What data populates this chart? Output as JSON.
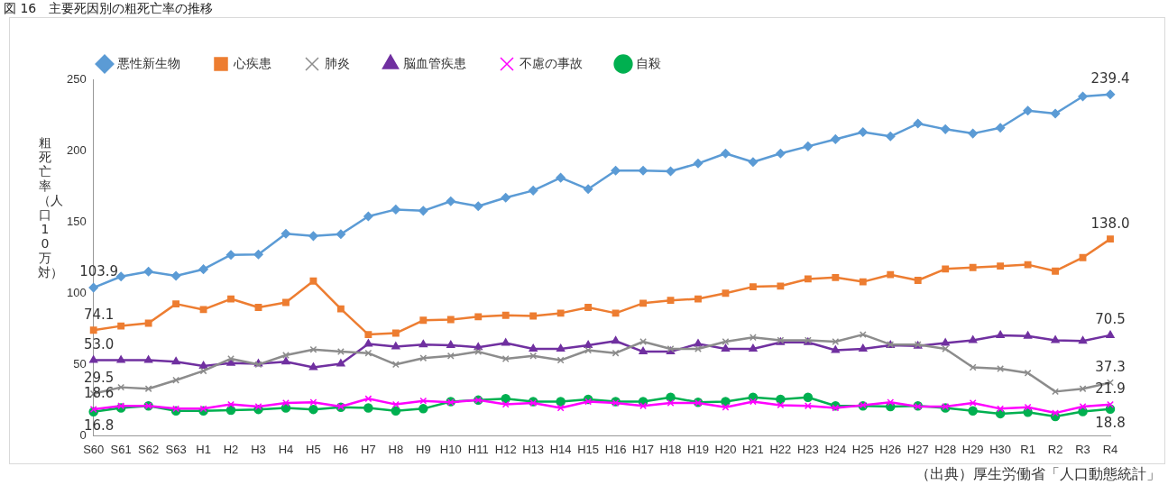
{
  "chart_data": {
    "type": "line",
    "title": "図 16　主要死因別の粗死亡率の推移",
    "ylabel": "粗死亡率（人口10万対）",
    "annotations": [
      "（出典）厚生労働省「人口動態統計」"
    ],
    "categories": [
      "S60",
      "S61",
      "S62",
      "S63",
      "H1",
      "H2",
      "H3",
      "H4",
      "H5",
      "H6",
      "H7",
      "H8",
      "H9",
      "H10",
      "H11",
      "H12",
      "H13",
      "H14",
      "H15",
      "H16",
      "H17",
      "H18",
      "H19",
      "H20",
      "H21",
      "H22",
      "H23",
      "H24",
      "H25",
      "H26",
      "H27",
      "H28",
      "H29",
      "H30",
      "R1",
      "R2",
      "R3",
      "R4"
    ],
    "ylim": [
      0,
      250
    ],
    "yticks": [
      0,
      50,
      100,
      150,
      200,
      250
    ],
    "grid": false,
    "legend": "top left",
    "line_style": "solid",
    "series": [
      {
        "name": "悪性新生物",
        "color": "#5b9bd5",
        "marker": "diamond",
        "values": [
          103.9,
          111.7,
          115.2,
          112.2,
          116.8,
          126.9,
          127.2,
          141.7,
          140.1,
          141.4,
          153.9,
          158.7,
          157.8,
          164.5,
          161,
          167,
          172,
          181,
          173,
          186,
          186,
          185.5,
          191,
          198,
          192,
          198,
          203,
          208,
          213,
          210,
          219,
          215,
          212,
          216,
          228,
          226,
          238,
          239.4
        ],
        "value_labels": [
          "103.9",
          null,
          null,
          null,
          null,
          null,
          null,
          null,
          null,
          null,
          null,
          null,
          null,
          null,
          null,
          null,
          null,
          null,
          null,
          null,
          null,
          null,
          null,
          null,
          null,
          null,
          null,
          null,
          null,
          null,
          null,
          null,
          null,
          null,
          null,
          null,
          null,
          "239.4"
        ]
      },
      {
        "name": "心疾患",
        "color": "#ed7d31",
        "marker": "square",
        "values": [
          74.1,
          77,
          79,
          92.5,
          88.5,
          96,
          90,
          93.5,
          108.5,
          89,
          71,
          72,
          81,
          81.5,
          83.5,
          84.5,
          84,
          86,
          90,
          86,
          93,
          95,
          96,
          100,
          104.5,
          105,
          110,
          111,
          108,
          113,
          109,
          117,
          118,
          119,
          120,
          115.5,
          125,
          138.0
        ],
        "value_labels": [
          "74.1",
          null,
          null,
          null,
          null,
          null,
          null,
          null,
          null,
          null,
          null,
          null,
          null,
          null,
          null,
          null,
          null,
          null,
          null,
          null,
          null,
          null,
          null,
          null,
          null,
          null,
          null,
          null,
          null,
          null,
          null,
          null,
          null,
          null,
          null,
          null,
          null,
          "138.0"
        ]
      },
      {
        "name": "肺炎",
        "color": "#8c8c8c",
        "marker": "cross",
        "values": [
          29.5,
          34,
          33,
          39,
          45.5,
          54,
          50,
          56.5,
          60.5,
          59,
          58,
          50,
          54.5,
          56,
          59,
          54,
          56,
          53,
          60,
          58,
          66,
          61,
          61,
          66,
          69,
          67,
          67,
          66,
          71,
          64,
          64,
          61,
          48,
          47,
          44,
          31,
          33,
          37.3
        ],
        "value_labels": [
          "29.5",
          null,
          null,
          null,
          null,
          null,
          null,
          null,
          null,
          null,
          null,
          null,
          null,
          null,
          null,
          null,
          null,
          null,
          null,
          null,
          null,
          null,
          null,
          null,
          null,
          null,
          null,
          null,
          null,
          null,
          null,
          null,
          null,
          null,
          null,
          null,
          null,
          "37.3"
        ]
      },
      {
        "name": "脳血管疾患",
        "color": "#7030a0",
        "marker": "triangle",
        "values": [
          53.0,
          53,
          53,
          52,
          49,
          51,
          50.5,
          52,
          48,
          50.5,
          64.5,
          62.5,
          64,
          63.5,
          62,
          65,
          61,
          61,
          63.5,
          66.5,
          59,
          59,
          64.5,
          61,
          61,
          65.5,
          65.5,
          60,
          61,
          63.5,
          63,
          65,
          67,
          70.5,
          70,
          67,
          66.5,
          70.5
        ],
        "value_labels": [
          "53.0",
          null,
          null,
          null,
          null,
          null,
          null,
          null,
          null,
          null,
          null,
          null,
          null,
          null,
          null,
          null,
          null,
          null,
          null,
          null,
          null,
          null,
          null,
          null,
          null,
          null,
          null,
          null,
          null,
          null,
          null,
          null,
          null,
          null,
          null,
          null,
          null,
          "70.5"
        ]
      },
      {
        "name": "不慮の事故",
        "color": "#ff00ff",
        "marker": "cross",
        "values": [
          18.6,
          21,
          21,
          19,
          19,
          22,
          20.5,
          23,
          23.5,
          20.5,
          26,
          22,
          24.5,
          23.5,
          25,
          22,
          23,
          19.5,
          24,
          23,
          21,
          23,
          23,
          20,
          24,
          21.5,
          21,
          19.5,
          21.5,
          23.5,
          20.5,
          20.5,
          23,
          19,
          20,
          16,
          20.5,
          21.9
        ],
        "value_labels": [
          "18.6",
          null,
          null,
          null,
          null,
          null,
          null,
          null,
          null,
          null,
          null,
          null,
          null,
          null,
          null,
          null,
          null,
          null,
          null,
          null,
          null,
          null,
          null,
          null,
          null,
          null,
          null,
          null,
          null,
          null,
          null,
          null,
          null,
          null,
          null,
          null,
          null,
          "21.9"
        ]
      },
      {
        "name": "自殺",
        "color": "#00b050",
        "marker": "circle",
        "values": [
          16.8,
          19.5,
          21,
          17.5,
          17.5,
          18,
          18.5,
          19.5,
          18.5,
          20,
          19.5,
          17.5,
          19,
          24,
          25,
          26,
          24,
          24,
          25.5,
          24,
          24,
          27,
          23.5,
          24,
          27,
          25.5,
          27,
          21,
          21,
          20.5,
          21,
          19.5,
          17.5,
          15.5,
          16.5,
          13.5,
          17,
          18.8
        ],
        "value_labels": [
          "16.8",
          null,
          null,
          null,
          null,
          null,
          null,
          null,
          null,
          null,
          null,
          null,
          null,
          null,
          null,
          null,
          null,
          null,
          null,
          null,
          null,
          null,
          null,
          null,
          null,
          null,
          null,
          null,
          null,
          null,
          null,
          null,
          null,
          null,
          null,
          null,
          null,
          "18.8"
        ]
      }
    ]
  }
}
